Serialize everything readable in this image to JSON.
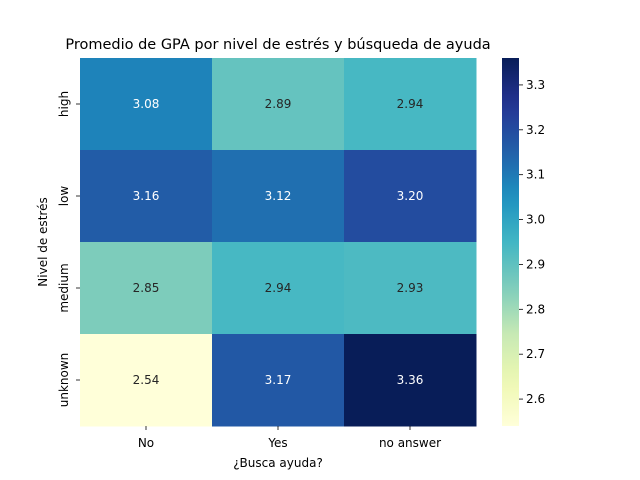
{
  "chart_data": {
    "type": "heatmap",
    "title": "Promedio de GPA por nivel de estrés y búsqueda de ayuda",
    "xlabel": "¿Busca ayuda?",
    "ylabel": "Nivel de estrés",
    "x_categories": [
      "No",
      "Yes",
      "no answer"
    ],
    "y_categories": [
      "high",
      "low",
      "medium",
      "unknown"
    ],
    "values": [
      [
        3.08,
        2.89,
        2.94
      ],
      [
        3.16,
        3.12,
        3.2
      ],
      [
        2.85,
        2.94,
        2.93
      ],
      [
        2.54,
        3.17,
        3.36
      ]
    ],
    "value_labels": [
      [
        "3.08",
        "2.89",
        "2.94"
      ],
      [
        "3.16",
        "3.12",
        "3.20"
      ],
      [
        "2.85",
        "2.94",
        "2.93"
      ],
      [
        "2.54",
        "3.17",
        "3.36"
      ]
    ],
    "colormap": "YlGnBu",
    "color_range": [
      2.54,
      3.36
    ],
    "colorbar_ticks": [
      2.6,
      2.7,
      2.8,
      2.9,
      3.0,
      3.1,
      3.2,
      3.3
    ],
    "colorbar_tick_labels": [
      "2.6",
      "2.7",
      "2.8",
      "2.9",
      "3.0",
      "3.1",
      "3.2",
      "3.3"
    ]
  }
}
